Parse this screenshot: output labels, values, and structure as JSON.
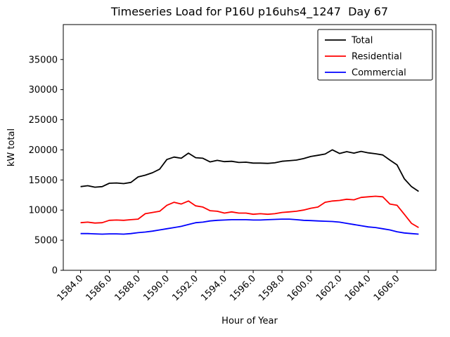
{
  "chart_data": {
    "type": "line",
    "title": "Timeseries Load for P16U p16uhs4_1247  Day 67",
    "xlabel": "Hour of Year",
    "ylabel": "kW total",
    "grid": false,
    "legend_position": "upper right",
    "xlim": [
      1582.8,
      1608.7
    ],
    "ylim": [
      0,
      40800
    ],
    "xticks": [
      1584,
      1586,
      1588,
      1590,
      1592,
      1594,
      1596,
      1598,
      1600,
      1602,
      1604,
      1606
    ],
    "xtick_labels": [
      "1584.0",
      "1586.0",
      "1588.0",
      "1590.0",
      "1592.0",
      "1594.0",
      "1596.0",
      "1598.0",
      "1600.0",
      "1602.0",
      "1604.0",
      "1606.0"
    ],
    "yticks": [
      0,
      5000,
      10000,
      15000,
      20000,
      25000,
      30000,
      35000
    ],
    "ytick_labels": [
      "0",
      "5000",
      "10000",
      "15000",
      "20000",
      "25000",
      "30000",
      "35000"
    ],
    "x": [
      1584.0,
      1584.5,
      1585.0,
      1585.5,
      1586.0,
      1586.5,
      1587.0,
      1587.5,
      1588.0,
      1588.5,
      1589.0,
      1589.5,
      1590.0,
      1590.5,
      1591.0,
      1591.5,
      1592.0,
      1592.5,
      1593.0,
      1593.5,
      1594.0,
      1594.5,
      1595.0,
      1595.5,
      1596.0,
      1596.5,
      1597.0,
      1597.5,
      1598.0,
      1598.5,
      1599.0,
      1599.5,
      1600.0,
      1600.5,
      1601.0,
      1601.5,
      1602.0,
      1602.5,
      1603.0,
      1603.5,
      1604.0,
      1604.5,
      1605.0,
      1605.5,
      1606.0,
      1606.5,
      1607.0,
      1607.5
    ],
    "series": [
      {
        "name": "Total",
        "color": "#000000",
        "values": [
          13900,
          14050,
          13800,
          13900,
          14450,
          14500,
          14400,
          14600,
          15500,
          15800,
          16200,
          16800,
          18400,
          18800,
          18600,
          19450,
          18700,
          18600,
          18000,
          18250,
          18050,
          18100,
          17900,
          17950,
          17800,
          17800,
          17750,
          17850,
          18100,
          18200,
          18300,
          18550,
          18900,
          19100,
          19300,
          20000,
          19400,
          19700,
          19450,
          19750,
          19500,
          19350,
          19150,
          18300,
          17500,
          15200,
          13900,
          13100
        ]
      },
      {
        "name": "Residential",
        "color": "#ff0000",
        "values": [
          7900,
          8000,
          7850,
          7900,
          8300,
          8350,
          8300,
          8400,
          8500,
          9400,
          9600,
          9800,
          10800,
          11300,
          11000,
          11500,
          10700,
          10500,
          9900,
          9800,
          9500,
          9700,
          9500,
          9500,
          9300,
          9400,
          9300,
          9400,
          9600,
          9700,
          9800,
          10000,
          10300,
          10500,
          11300,
          11500,
          11600,
          11800,
          11700,
          12100,
          12200,
          12300,
          12200,
          11000,
          10800,
          9300,
          7800,
          7100
        ]
      },
      {
        "name": "Commercial",
        "color": "#0000ff",
        "values": [
          6100,
          6100,
          6050,
          6000,
          6050,
          6050,
          6000,
          6100,
          6250,
          6350,
          6500,
          6700,
          6900,
          7100,
          7300,
          7600,
          7900,
          8000,
          8200,
          8300,
          8350,
          8400,
          8400,
          8400,
          8350,
          8350,
          8400,
          8450,
          8500,
          8500,
          8400,
          8300,
          8250,
          8200,
          8150,
          8100,
          8000,
          7800,
          7600,
          7400,
          7200,
          7100,
          6900,
          6700,
          6400,
          6200,
          6100,
          6000
        ]
      }
    ]
  }
}
